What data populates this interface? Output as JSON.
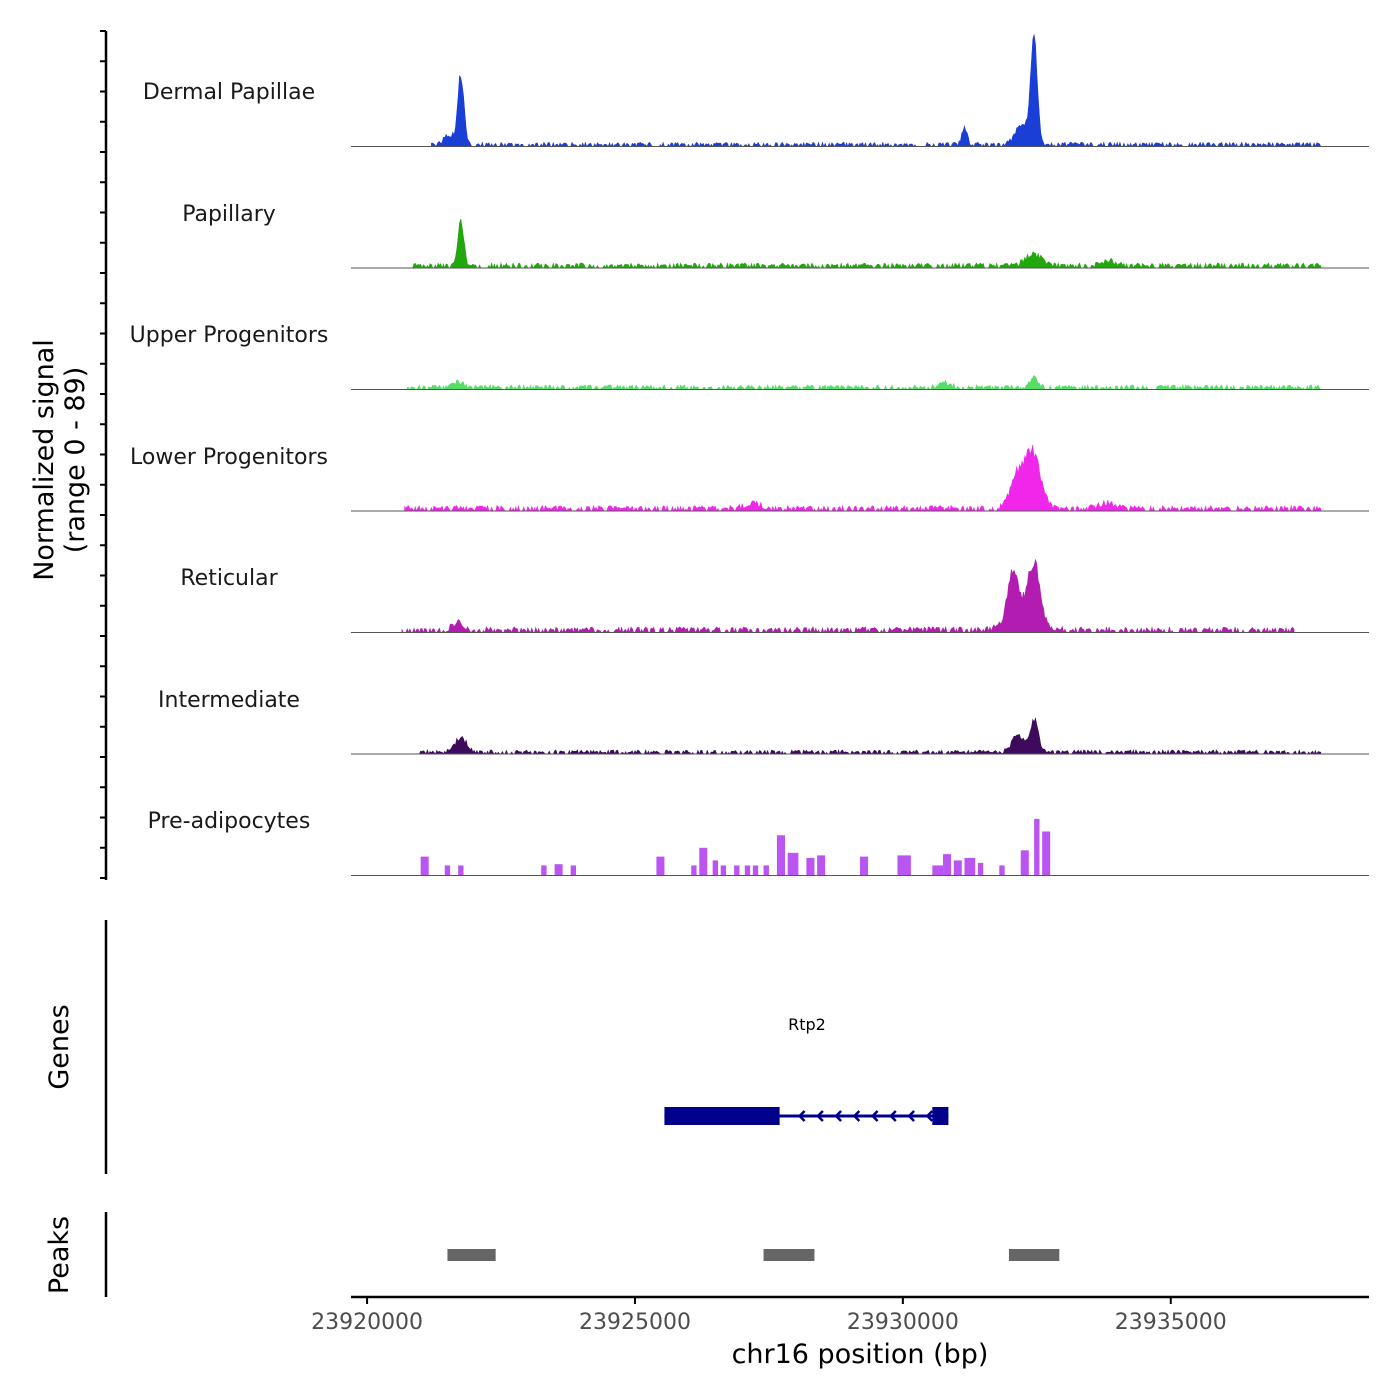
{
  "chart_data": {
    "type": "area",
    "chromosome": "chr16",
    "xlabel": "chr16 position (bp)",
    "xlim": [
      23919700,
      23938700
    ],
    "xticks": [
      23920000,
      23925000,
      23930000,
      23935000
    ],
    "xtick_labels": [
      "23920000",
      "23925000",
      "23930000",
      "23935000"
    ],
    "coverage": {
      "ylabel_line1": "Normalized signal",
      "ylabel_line2": "(range 0 - 89)",
      "ylim": [
        0,
        89
      ],
      "series": [
        {
          "name": "Dermal Papillae",
          "color": "#1a3fd6",
          "span": [
            23921200,
            23937800
          ],
          "baseline": 1.2,
          "noise": 2.2,
          "peaks": [
            [
              23921750,
              60,
              55
            ],
            [
              23921550,
              8,
              120
            ],
            [
              23931150,
              14,
              50
            ],
            [
              23932450,
              89,
              60
            ],
            [
              23932250,
              18,
              140
            ]
          ]
        },
        {
          "name": "Papillary",
          "color": "#22a80e",
          "span": [
            23920850,
            23937800
          ],
          "baseline": 1.5,
          "noise": 2.5,
          "peaks": [
            [
              23921750,
              37,
              55
            ],
            [
              23932450,
              10,
              160
            ],
            [
              23933850,
              5,
              120
            ]
          ]
        },
        {
          "name": "Upper Progenitors",
          "color": "#55dd66",
          "span": [
            23920750,
            23937800
          ],
          "baseline": 1.2,
          "noise": 2.4,
          "peaks": [
            [
              23921700,
              5,
              90
            ],
            [
              23932450,
              8,
              80
            ],
            [
              23930800,
              4,
              100
            ]
          ]
        },
        {
          "name": "Lower Progenitors",
          "color": "#f027ea",
          "span": [
            23920700,
            23937800
          ],
          "baseline": 1.5,
          "noise": 2.8,
          "peaks": [
            [
              23932400,
              50,
              160
            ],
            [
              23932100,
              22,
              120
            ],
            [
              23927200,
              5,
              150
            ],
            [
              23933800,
              5,
              150
            ]
          ]
        },
        {
          "name": "Reticular",
          "color": "#b21cb0",
          "span": [
            23920650,
            23937300
          ],
          "baseline": 1.4,
          "noise": 3.0,
          "peaks": [
            [
              23932450,
              45,
              100
            ],
            [
              23932050,
              38,
              90
            ],
            [
              23932250,
              20,
              260
            ],
            [
              23921700,
              7,
              100
            ]
          ]
        },
        {
          "name": "Intermediate",
          "color": "#3d0a5c",
          "span": [
            23920950,
            23937800
          ],
          "baseline": 1.0,
          "noise": 2.2,
          "peaks": [
            [
              23932450,
              28,
              80
            ],
            [
              23932150,
              15,
              110
            ],
            [
              23921750,
              13,
              110
            ]
          ]
        },
        {
          "name": "Pre-adipocytes",
          "color": "#bb55f2",
          "span": [
            23920950,
            23936800
          ],
          "baseline": 0,
          "noise": 0,
          "blocks": [
            [
              23921000,
              23921150,
              15
            ],
            [
              23921450,
              23921550,
              8
            ],
            [
              23921700,
              23921800,
              8
            ],
            [
              23923250,
              23923350,
              8
            ],
            [
              23923500,
              23923650,
              9
            ],
            [
              23923800,
              23923900,
              8
            ],
            [
              23925400,
              23925550,
              15
            ],
            [
              23926050,
              23926150,
              8
            ],
            [
              23926200,
              23926350,
              22
            ],
            [
              23926450,
              23926550,
              12
            ],
            [
              23926600,
              23926700,
              8
            ],
            [
              23926850,
              23926950,
              8
            ],
            [
              23927050,
              23927150,
              8
            ],
            [
              23927200,
              23927300,
              8
            ],
            [
              23927400,
              23927500,
              8
            ],
            [
              23927650,
              23927800,
              32
            ],
            [
              23927850,
              23928050,
              18
            ],
            [
              23928200,
              23928350,
              14
            ],
            [
              23928400,
              23928550,
              16
            ],
            [
              23929200,
              23929350,
              15
            ],
            [
              23929900,
              23930150,
              16
            ],
            [
              23930550,
              23930750,
              8
            ],
            [
              23930750,
              23930900,
              17
            ],
            [
              23930950,
              23931100,
              12
            ],
            [
              23931150,
              23931350,
              14
            ],
            [
              23931400,
              23931500,
              10
            ],
            [
              23931800,
              23931900,
              8
            ],
            [
              23932200,
              23932350,
              20
            ],
            [
              23932450,
              23932550,
              45
            ],
            [
              23932600,
              23932750,
              35
            ]
          ]
        }
      ]
    },
    "genes": {
      "ylabel": "Genes",
      "items": [
        {
          "name": "Rtp2",
          "start": 23925550,
          "end": 23930850,
          "strand": "-",
          "color": "#00008b",
          "exons": [
            [
              23925550,
              23927700
            ],
            [
              23930550,
              23930850
            ]
          ]
        }
      ]
    },
    "peaks": {
      "ylabel": "Peaks",
      "color": "#666666",
      "regions": [
        [
          23921500,
          23922400
        ],
        [
          23927400,
          23928350
        ],
        [
          23931980,
          23932920
        ]
      ]
    }
  }
}
